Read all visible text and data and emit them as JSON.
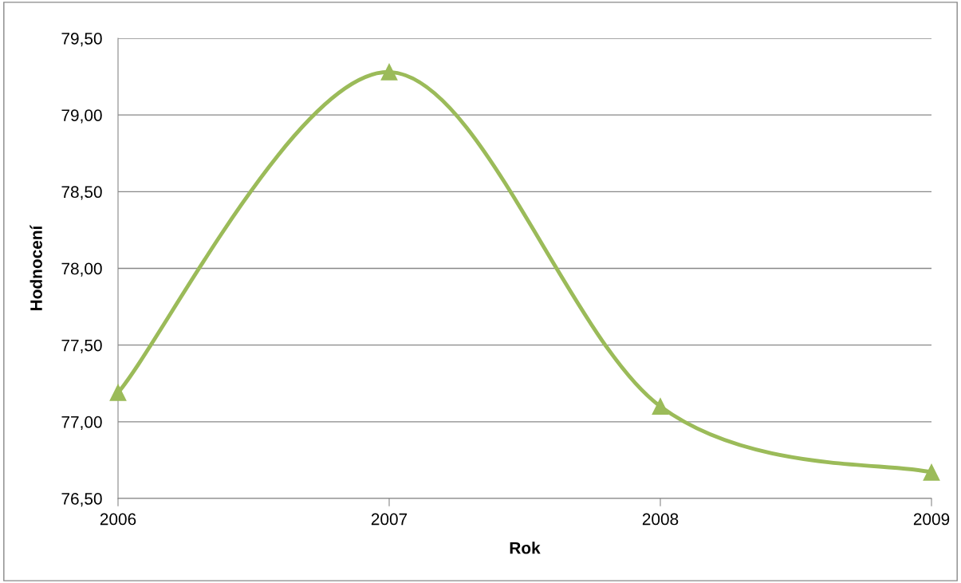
{
  "chart_data": {
    "type": "line",
    "xlabel": "Rok",
    "ylabel": "Hodnocení",
    "categories": [
      "2006",
      "2007",
      "2008",
      "2009"
    ],
    "series": [
      {
        "color": "#9bbb59",
        "values": [
          77.19,
          79.28,
          77.1,
          76.67
        ]
      }
    ],
    "ylim": [
      76.5,
      79.5
    ],
    "yticks": [
      {
        "value": 76.5,
        "label": "76,50"
      },
      {
        "value": 77.0,
        "label": "77,00"
      },
      {
        "value": 77.5,
        "label": "77,50"
      },
      {
        "value": 78.0,
        "label": "78,00"
      },
      {
        "value": 78.5,
        "label": "78,50"
      },
      {
        "value": 79.0,
        "label": "79,00"
      },
      {
        "value": 79.5,
        "label": "79,50"
      }
    ],
    "grid": "y",
    "marker": "triangle",
    "line_style": "solid"
  }
}
